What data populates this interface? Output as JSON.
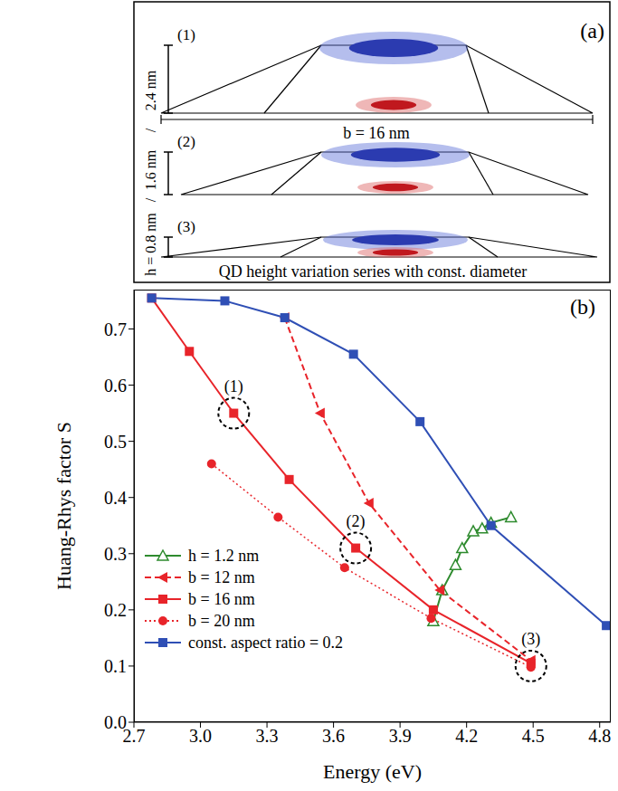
{
  "diagram": {
    "panel_label": "(a)",
    "caption": "QD height variation series with const. diameter",
    "base_label": "b = 16 nm",
    "separator": "/",
    "dots": [
      {
        "label": "(1)",
        "height_label": "2.4 nm"
      },
      {
        "label": "(2)",
        "height_label": "1.6 nm"
      },
      {
        "label": "(3)",
        "height_label": "h = 0.8 nm"
      }
    ]
  },
  "chart_data": {
    "type": "line",
    "panel_label": "(b)",
    "x_label": "Energy (eV)",
    "y_label": "Huang-Rhys factor S",
    "xlim": [
      2.7,
      4.85
    ],
    "xticks": [
      2.7,
      {
        "value": 3,
        "label": "3.0"
      },
      3.3,
      3.6,
      3.9,
      4.2,
      4.5,
      4.8
    ],
    "ylim": [
      0,
      0.77
    ],
    "yticks": [
      {
        "value": 0,
        "label": "0.0"
      },
      0.1,
      0.2,
      0.3,
      0.4,
      0.5,
      0.6,
      0.7
    ],
    "legend": "lower left",
    "series": [
      {
        "name": "h = 1.2 nm",
        "color": "#2e8b2e",
        "marker": "triangle",
        "line_style": "solid",
        "x": [
          4.05,
          4.09,
          4.15,
          4.18,
          4.23,
          4.27,
          4.31,
          4.4
        ],
        "values": [
          0.18,
          0.235,
          0.28,
          0.31,
          0.34,
          0.345,
          0.355,
          0.365
        ]
      },
      {
        "name": "b = 12 nm",
        "color": "#e8242a",
        "marker": "left_triangle",
        "line_style": "dashed",
        "x": [
          3.38,
          3.54,
          3.76,
          4.08,
          4.49
        ],
        "values": [
          0.72,
          0.55,
          0.39,
          0.235,
          0.11
        ]
      },
      {
        "name": "b = 16 nm",
        "color": "#e8242a",
        "marker": "square",
        "line_style": "solid",
        "x": [
          2.78,
          2.95,
          3.15,
          3.4,
          3.7,
          4.05,
          4.49
        ],
        "values": [
          0.755,
          0.66,
          0.55,
          0.432,
          0.31,
          0.2,
          0.105
        ]
      },
      {
        "name": "b = 20 nm",
        "color": "#e8242a",
        "marker": "circle",
        "line_style": "dotted",
        "x": [
          3.05,
          3.35,
          3.65,
          4.04,
          4.49
        ],
        "values": [
          0.46,
          0.365,
          0.275,
          0.185,
          0.098
        ]
      },
      {
        "name": "const. aspect ratio = 0.2",
        "color": "#2f4fb5",
        "marker": "square",
        "line_style": "solid",
        "x": [
          2.78,
          3.11,
          3.38,
          3.69,
          3.99,
          4.31,
          4.83
        ],
        "values": [
          0.755,
          0.75,
          0.72,
          0.655,
          0.535,
          0.35,
          0.172
        ]
      }
    ],
    "annotations": [
      {
        "text": "(1)",
        "x": 3.15,
        "y": 0.55
      },
      {
        "text": "(2)",
        "x": 3.7,
        "y": 0.31
      },
      {
        "text": "(3)",
        "x": 4.49,
        "y": 0.1
      }
    ]
  }
}
